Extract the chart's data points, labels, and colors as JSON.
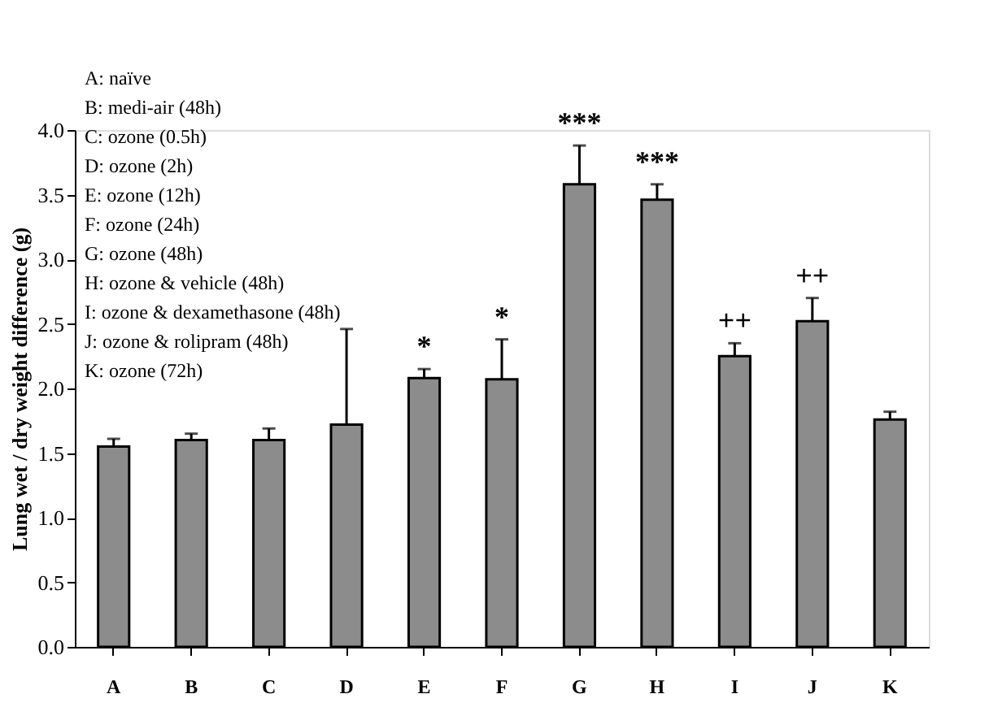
{
  "chart_data": {
    "type": "bar",
    "ylabel": "Lung wet / dry weight difference (g)",
    "categories": [
      "A",
      "B",
      "C",
      "D",
      "E",
      "F",
      "G",
      "H",
      "I",
      "J",
      "K"
    ],
    "values": [
      1.55,
      1.6,
      1.6,
      1.72,
      2.08,
      2.07,
      3.58,
      3.46,
      2.25,
      2.52,
      1.76
    ],
    "errors": [
      0.06,
      0.05,
      0.09,
      0.74,
      0.07,
      0.31,
      0.3,
      0.12,
      0.1,
      0.18,
      0.06
    ],
    "color": "#8c8c8c",
    "ylim": [
      0,
      4
    ],
    "yticks": [
      {
        "value": 0,
        "label": "0.0"
      },
      {
        "value": 0.5,
        "label": "0.5"
      },
      {
        "value": 1,
        "label": "1.0"
      },
      {
        "value": 1.5,
        "label": "1.5"
      },
      {
        "value": 2,
        "label": "2.0"
      },
      {
        "value": 2.5,
        "label": "2.5"
      },
      {
        "value": 3,
        "label": "3.0"
      },
      {
        "value": 3.5,
        "label": "3.5"
      },
      {
        "value": 4,
        "label": "4.0"
      }
    ],
    "grid": false,
    "annotations": [
      "A: naïve",
      "B: medi-air (48h)",
      "C: ozone (0.5h)",
      "D: ozone (2h)",
      "E: ozone (12h)",
      "F: ozone (24h)",
      "G: ozone (48h)",
      "H: ozone & vehicle (48h)",
      "I: ozone & dexamethasone (48h)",
      "J: ozone & rolipram (48h)",
      "K: ozone (72h)",
      {
        "text": "*",
        "x": "E",
        "y": 2.08
      },
      {
        "text": "*",
        "x": "F",
        "y": 2.07
      },
      {
        "text": "***",
        "x": "G",
        "y": 3.58
      },
      {
        "text": "***",
        "x": "H",
        "y": 3.46
      },
      {
        "text": "++",
        "x": "I",
        "y": 2.25
      },
      {
        "text": "++",
        "x": "J",
        "y": 2.52
      }
    ]
  }
}
